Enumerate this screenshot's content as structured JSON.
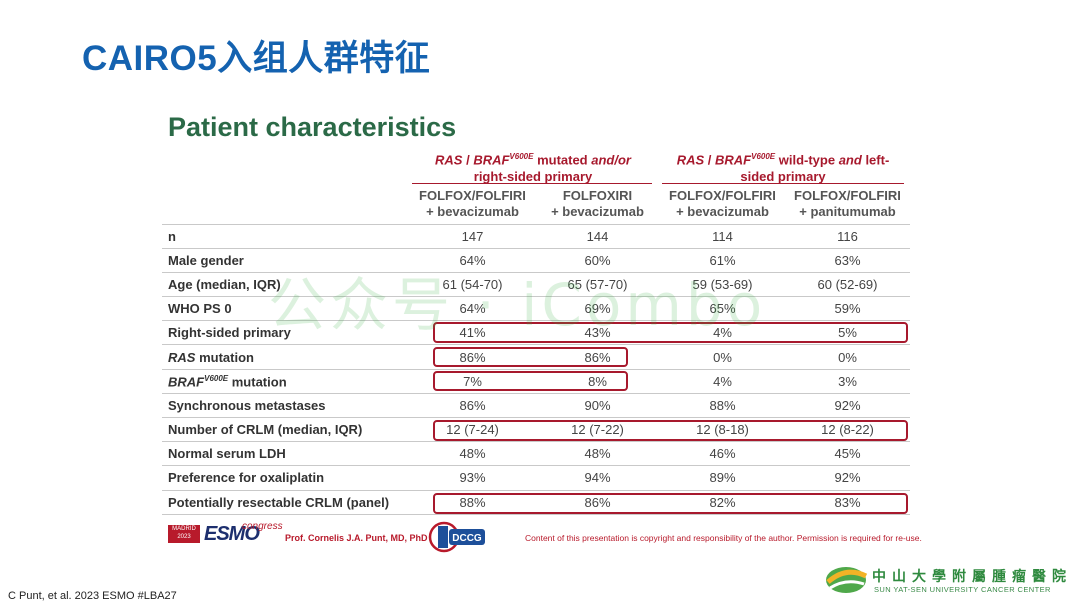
{
  "slide": {
    "title": "CAIRO5入组人群特征",
    "panel_title": "Patient characteristics"
  },
  "groups": [
    {
      "line1_a": "RAS",
      "line1_sep": " / ",
      "line1_b": "BRAF",
      "line1_sup": "V600E",
      "line1_c": " mutated ",
      "line1_d": "and/or",
      "line2": "right-sided primary"
    },
    {
      "line1_a": "RAS",
      "line1_sep": " / ",
      "line1_b": "BRAF",
      "line1_sup": "V600E",
      "line1_c": " wild-type ",
      "line1_d": "and",
      "line1_e": " left-",
      "line2": "sided primary"
    }
  ],
  "columns": [
    {
      "line1": "FOLFOX/FOLFIRI",
      "line2": "+ bevacizumab"
    },
    {
      "line1": "FOLFOXIRI",
      "line2": "+ bevacizumab"
    },
    {
      "line1": "FOLFOX/FOLFIRI",
      "line2": "+ bevacizumab"
    },
    {
      "line1": "FOLFOX/FOLFIRI",
      "line2": "+ panitumumab"
    }
  ],
  "rows": [
    {
      "label": "n",
      "values": [
        "147",
        "144",
        "114",
        "116"
      ]
    },
    {
      "label": "Male gender",
      "values": [
        "64%",
        "60%",
        "61%",
        "63%"
      ]
    },
    {
      "label": "Age (median, IQR)",
      "values": [
        "61 (54-70)",
        "65 (57-70)",
        "59 (53-69)",
        "60 (52-69)"
      ]
    },
    {
      "label": "WHO PS 0",
      "values": [
        "64%",
        "69%",
        "65%",
        "59%"
      ]
    },
    {
      "label": "Right-sided primary",
      "values": [
        "41%",
        "43%",
        "4%",
        "5%"
      ]
    },
    {
      "label_it": "RAS",
      "label_rest": " mutation",
      "values": [
        "86%",
        "86%",
        "0%",
        "0%"
      ]
    },
    {
      "label_it": "BRAF",
      "label_sup": "V600E",
      "label_rest": " mutation",
      "values": [
        "7%",
        "8%",
        "4%",
        "3%"
      ]
    },
    {
      "label": "Synchronous metastases",
      "values": [
        "86%",
        "90%",
        "88%",
        "92%"
      ]
    },
    {
      "label": "Number of CRLM (median, IQR)",
      "values": [
        "12 (7-24)",
        "12 (7-22)",
        "12 (8-18)",
        "12 (8-22)"
      ]
    },
    {
      "label": "Normal serum LDH",
      "values": [
        "48%",
        "48%",
        "46%",
        "45%"
      ]
    },
    {
      "label": "Preference for oxaliplatin",
      "values": [
        "93%",
        "94%",
        "89%",
        "92%"
      ]
    },
    {
      "label": "Potentially resectable CRLM (panel)",
      "values": [
        "88%",
        "86%",
        "82%",
        "83%"
      ]
    }
  ],
  "highlight_color": "#a7192d",
  "watermark": "公众号 · iCombo",
  "footer": {
    "esmo_box": "MADRID 2023",
    "esmo_word": "ESMO",
    "esmo_congress": "congress",
    "presenter": "Prof. Cornelis J.A. Punt, MD, PhD",
    "dccg": "DCCG",
    "copyright": "Content of this presentation is copyright and responsibility of the author. Permission is required for re-use.",
    "citation": "C Punt, et al. 2023 ESMO #LBA27"
  },
  "hospital": {
    "name_cn": "中山大學附屬腫瘤醫院",
    "name_en": "SUN YAT-SEN UNIVERSITY CANCER CENTER"
  }
}
